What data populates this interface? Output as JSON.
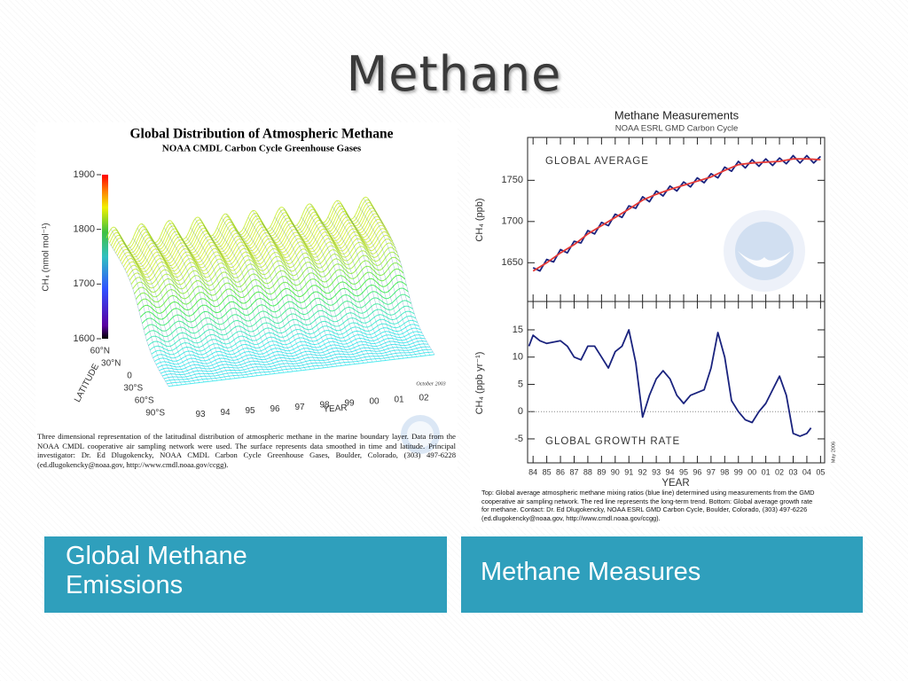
{
  "title": "Methane",
  "left_figure": {
    "title": "Global Distribution of Atmospheric Methane",
    "subtitle": "NOAA CMDL Carbon Cycle Greenhouse Gases",
    "z_label": "CH₄ (nmol mol⁻¹)",
    "zlim": [
      1600,
      1900
    ],
    "zticks": [
      1600,
      1700,
      1800,
      1900
    ],
    "latitude_label": "LATITUDE",
    "latitude_ticks": [
      "90°S",
      "60°S",
      "30°S",
      "0",
      "30°N",
      "60°N"
    ],
    "year_label": "YEAR",
    "year_ticks": [
      "93",
      "94",
      "95",
      "96",
      "97",
      "98",
      "99",
      "00",
      "01",
      "02"
    ],
    "date_note": "October 2003",
    "caption": "Three dimensional representation of the latitudinal distribution of atmospheric methane in the marine boundary layer.  Data from the NOAA CMDL cooperative air sampling network were used.  The surface represents data smoothed in time and latitude.  Principal investigator:  Dr. Ed Dlugokencky, NOAA CMDL Carbon Cycle Greenhouse Gases, Boulder, Colorado, (303) 497-6228 (ed.dlugokencky@noaa.gov, http://www.cmdl.noaa.gov/ccgg)."
  },
  "right_figure": {
    "title": "Methane Measurements",
    "subtitle": "NOAA ESRL GMD Carbon Cycle",
    "xlabel": "YEAR",
    "xlim": [
      1983.6,
      2005.3
    ],
    "xticks": [
      {
        "value": 1984,
        "label": "84"
      },
      {
        "value": 1985,
        "label": "85"
      },
      {
        "value": 1986,
        "label": "86"
      },
      {
        "value": 1987,
        "label": "87"
      },
      {
        "value": 1988,
        "label": "88"
      },
      {
        "value": 1989,
        "label": "89"
      },
      {
        "value": 1990,
        "label": "90"
      },
      {
        "value": 1991,
        "label": "91"
      },
      {
        "value": 1992,
        "label": "92"
      },
      {
        "value": 1993,
        "label": "93"
      },
      {
        "value": 1994,
        "label": "94"
      },
      {
        "value": 1995,
        "label": "95"
      },
      {
        "value": 1996,
        "label": "96"
      },
      {
        "value": 1997,
        "label": "97"
      },
      {
        "value": 1998,
        "label": "98"
      },
      {
        "value": 1999,
        "label": "99"
      },
      {
        "value": 2000,
        "label": "00"
      },
      {
        "value": 2001,
        "label": "01"
      },
      {
        "value": 2002,
        "label": "02"
      },
      {
        "value": 2003,
        "label": "03"
      },
      {
        "value": 2004,
        "label": "04"
      },
      {
        "value": 2005,
        "label": "05"
      }
    ],
    "date_note": "May 2006",
    "top_panel": {
      "type": "line",
      "label": "GLOBAL AVERAGE",
      "ylabel": "CH₄ (ppb)",
      "ylim": [
        1603,
        1802
      ],
      "yticks": [
        1650,
        1700,
        1750
      ],
      "series": [
        {
          "color": "#1a237e",
          "x": [
            1984,
            1984.5,
            1985,
            1985.5,
            1986,
            1986.5,
            1987,
            1987.5,
            1988,
            1988.5,
            1989,
            1989.5,
            1990,
            1990.5,
            1991,
            1991.5,
            1992,
            1992.5,
            1993,
            1993.5,
            1994,
            1994.5,
            1995,
            1995.5,
            1996,
            1996.5,
            1997,
            1997.5,
            1998,
            1998.5,
            1999,
            1999.5,
            2000,
            2000.5,
            2001,
            2001.5,
            2002,
            2002.5,
            2003,
            2003.5,
            2004,
            2004.5,
            2005
          ],
          "values": [
            1644,
            1640,
            1654,
            1651,
            1666,
            1662,
            1676,
            1674,
            1689,
            1685,
            1699,
            1695,
            1709,
            1705,
            1719,
            1716,
            1730,
            1724,
            1737,
            1731,
            1743,
            1737,
            1748,
            1742,
            1753,
            1747,
            1758,
            1753,
            1766,
            1761,
            1773,
            1765,
            1775,
            1767,
            1776,
            1768,
            1777,
            1770,
            1780,
            1771,
            1780,
            1771,
            1779
          ]
        },
        {
          "color": "#e53935",
          "x": [
            1984,
            1985,
            1986,
            1987,
            1988,
            1989,
            1990,
            1991,
            1992,
            1993,
            1994,
            1995,
            1996,
            1997,
            1998,
            1999,
            2000,
            2001,
            2002,
            2003,
            2004,
            2005
          ],
          "values": [
            1640,
            1650,
            1662,
            1672,
            1685,
            1695,
            1705,
            1715,
            1726,
            1733,
            1739,
            1744,
            1749,
            1754,
            1762,
            1769,
            1771,
            1772,
            1773,
            1776,
            1776,
            1775
          ]
        }
      ]
    },
    "bottom_panel": {
      "type": "line",
      "label": "GLOBAL GROWTH RATE",
      "ylabel": "CH₄ (ppb yr⁻¹)",
      "ylim": [
        -9.4,
        20.2
      ],
      "yticks": [
        -5,
        0,
        5,
        10,
        15
      ],
      "series": [
        {
          "color": "#1a237e",
          "x": [
            1983.7,
            1984,
            1984.5,
            1985,
            1986,
            1986.5,
            1987,
            1987.5,
            1988,
            1988.5,
            1989,
            1989.5,
            1990,
            1990.5,
            1991,
            1991.5,
            1992,
            1992.5,
            1993,
            1993.5,
            1994,
            1994.5,
            1995,
            1995.5,
            1996,
            1996.5,
            1997,
            1997.5,
            1998,
            1998.5,
            1999,
            1999.5,
            2000,
            2000.5,
            2001,
            2001.5,
            2002,
            2002.5,
            2003,
            2003.5,
            2004,
            2004.3
          ],
          "values": [
            12,
            14,
            13,
            12.5,
            13,
            12,
            10,
            9.5,
            12,
            12,
            10,
            8,
            11,
            12,
            15,
            9,
            -1,
            3,
            6,
            7.5,
            6,
            3,
            1.5,
            3,
            3.5,
            4,
            8,
            14.5,
            10,
            2,
            0,
            -1.5,
            -2,
            0,
            1.5,
            4,
            6.5,
            3,
            -4,
            -4.5,
            -4,
            -3
          ]
        }
      ]
    },
    "caption": "Top:  Global average atmospheric methane mixing ratios (blue line) determined using measurements from the GMD cooperative air sampling network.  The red line represents the long-term trend.  Bottom:  Global average growth rate for methane.  Contact:  Dr. Ed Dlugokencky, NOAA ESRL GMD Carbon Cycle, Boulder, Colorado, (303) 497-6226 (ed.dlugokencky@noaa.gov, http://www.cmdl.noaa.gov/ccgg)."
  },
  "buttons": [
    "Global Methane Emissions",
    "Methane Measures"
  ]
}
